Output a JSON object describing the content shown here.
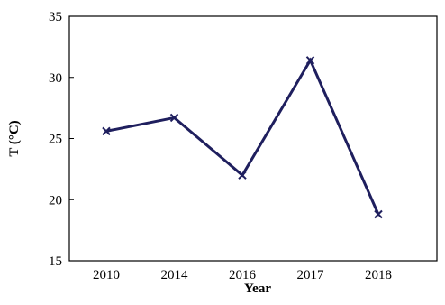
{
  "chart_data": {
    "type": "line",
    "title": "",
    "xlabel": "Year",
    "ylabel": "T (°C)",
    "categories": [
      "2010",
      "2014",
      "2016",
      "2017",
      "2018"
    ],
    "series": [
      {
        "values": [
          25.6,
          26.7,
          22.0,
          31.4,
          18.8
        ],
        "color": "#1f1f5e",
        "marker": "x"
      }
    ],
    "ylim": [
      15,
      35
    ],
    "yticks": [
      "15",
      "20",
      "25",
      "30",
      "35"
    ],
    "grid": false,
    "legend": "none"
  }
}
